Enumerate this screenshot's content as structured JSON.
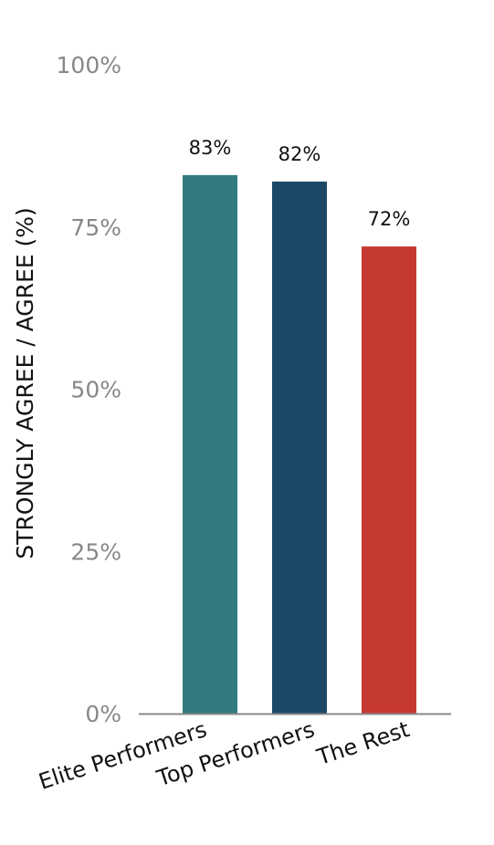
{
  "chart_data": {
    "type": "bar",
    "title": "",
    "xlabel": "",
    "ylabel": "STRONGLY AGREE / AGREE (%)",
    "ylim": [
      0,
      100
    ],
    "yticks": [
      0,
      25,
      50,
      75,
      100
    ],
    "ytick_labels": [
      "0%",
      "25%",
      "50%",
      "75%",
      "100%"
    ],
    "categories": [
      "Elite Performers",
      "Top Performers",
      "The Rest"
    ],
    "values": [
      83,
      82,
      72
    ],
    "data_labels": [
      "83%",
      "82%",
      "72%"
    ],
    "colors": [
      "#317b7e",
      "#1c4868",
      "#c63832"
    ],
    "axis_color": "#888888",
    "grid": false
  }
}
